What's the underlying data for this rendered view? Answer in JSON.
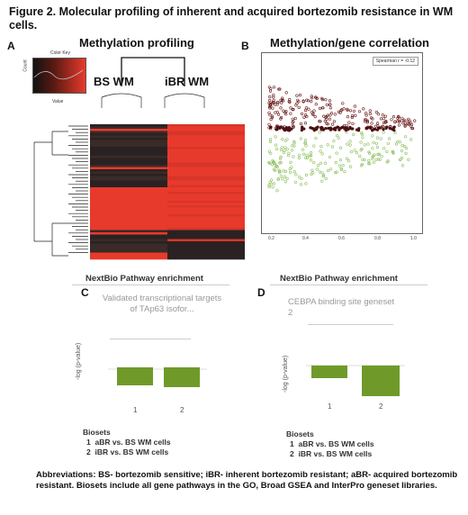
{
  "figure": {
    "title": "Figure 2. Molecular profiling of inherent and acquired bortezomib resistance in WM cells.",
    "abbreviations": "Abbreviations: BS- bortezomib sensitive; iBR- inherent bortezomib resistant; aBR- acquired bortezomib resistant. Biosets include all gene pathways in the GO, Broad GSEA and InterPro geneset libraries."
  },
  "panel_a": {
    "label": "A",
    "title": "Methylation profiling",
    "col1": "BS WM",
    "col2": "iBR WM",
    "color_key_label": "Color Key",
    "color_key_axis": "Value"
  },
  "panel_b": {
    "label": "B",
    "title": "Methylation/gene correlation",
    "legend": "Spearman r = -0.12"
  },
  "panel_c": {
    "label": "C",
    "header": "NextBio Pathway enrichment",
    "pathway": "Validated transcriptional targets of TAp63 isofor...",
    "ylabel": "-log (p-value)",
    "bioset_title": "Biosets",
    "biosets": [
      "aBR vs. BS WM cells",
      "iBR vs. BS WM cells"
    ],
    "bioset_nums": [
      "1",
      "2"
    ]
  },
  "panel_d": {
    "label": "D",
    "header": "NextBio Pathway enrichment",
    "pathway": "CEBPA binding site geneset 2",
    "ylabel": "-log (p-value)",
    "bioset_title": "Biosets",
    "biosets": [
      "aBR vs. BS WM cells",
      "iBR vs. BS WM cells"
    ],
    "bioset_nums": [
      "1",
      "2"
    ]
  },
  "colors": {
    "heat_red": "#e83a2c",
    "heat_dark": "#2a2222",
    "bar_green": "#6f9a2a",
    "scatter_dark": "#6b1a1a",
    "scatter_green": "#8fc060"
  }
}
